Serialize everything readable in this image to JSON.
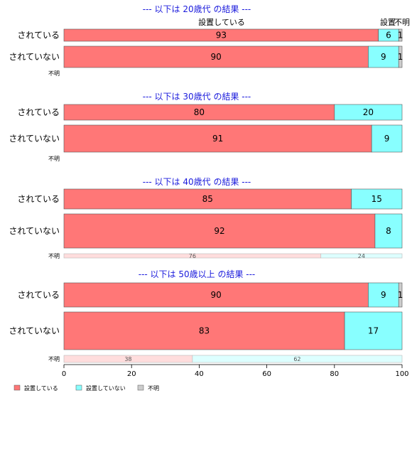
{
  "chart_data": {
    "type": "bar",
    "orientation": "horizontal",
    "stacked": true,
    "xlim": [
      0,
      100
    ],
    "x_ticks": [
      "0",
      "20",
      "40",
      "60",
      "80",
      "100"
    ],
    "legend": {
      "placement": "bottom-left",
      "entries": [
        {
          "name": "設置している",
          "color": "#ff7777"
        },
        {
          "name": "設置していない",
          "color": "#88ffff"
        },
        {
          "name": "不明",
          "color": "#cccccc"
        }
      ]
    },
    "column_labels": [
      "設置している",
      "設置",
      "不明"
    ],
    "panels": [
      {
        "title": "--- 以下は 20歳代 の結果 ---",
        "rows": [
          {
            "label": "されている",
            "values": [
              93,
              6,
              1
            ],
            "value_labels": [
              "93",
              "6",
              "1"
            ]
          },
          {
            "label": "されていない",
            "values": [
              90,
              9,
              1
            ],
            "value_labels": [
              "90",
              "9",
              "1"
            ]
          },
          {
            "label": "不明",
            "values": [],
            "value_labels": []
          }
        ]
      },
      {
        "title": "--- 以下は 30歳代 の結果 ---",
        "rows": [
          {
            "label": "されている",
            "values": [
              80,
              20,
              0
            ],
            "value_labels": [
              "80",
              "20",
              ""
            ]
          },
          {
            "label": "されていない",
            "values": [
              91,
              9,
              0
            ],
            "value_labels": [
              "91",
              "9",
              ""
            ]
          },
          {
            "label": "不明",
            "values": [],
            "value_labels": []
          }
        ]
      },
      {
        "title": "--- 以下は 40歳代 の結果 ---",
        "rows": [
          {
            "label": "されている",
            "values": [
              85,
              15,
              0
            ],
            "value_labels": [
              "85",
              "15",
              ""
            ]
          },
          {
            "label": "されていない",
            "values": [
              92,
              8,
              0
            ],
            "value_labels": [
              "92",
              "8",
              ""
            ]
          },
          {
            "label": "不明",
            "values": [
              76,
              24,
              0
            ],
            "value_labels": [
              "76",
              "24",
              ""
            ]
          }
        ]
      },
      {
        "title": "--- 以下は 50歳以上 の結果 ---",
        "rows": [
          {
            "label": "されている",
            "values": [
              90,
              9,
              1
            ],
            "value_labels": [
              "90",
              "9",
              "1"
            ]
          },
          {
            "label": "されていない",
            "values": [
              83,
              17,
              0
            ],
            "value_labels": [
              "83",
              "17",
              ""
            ]
          },
          {
            "label": "不明",
            "values": [
              38,
              62,
              0
            ],
            "value_labels": [
              "38",
              "62",
              ""
            ]
          }
        ]
      }
    ]
  }
}
